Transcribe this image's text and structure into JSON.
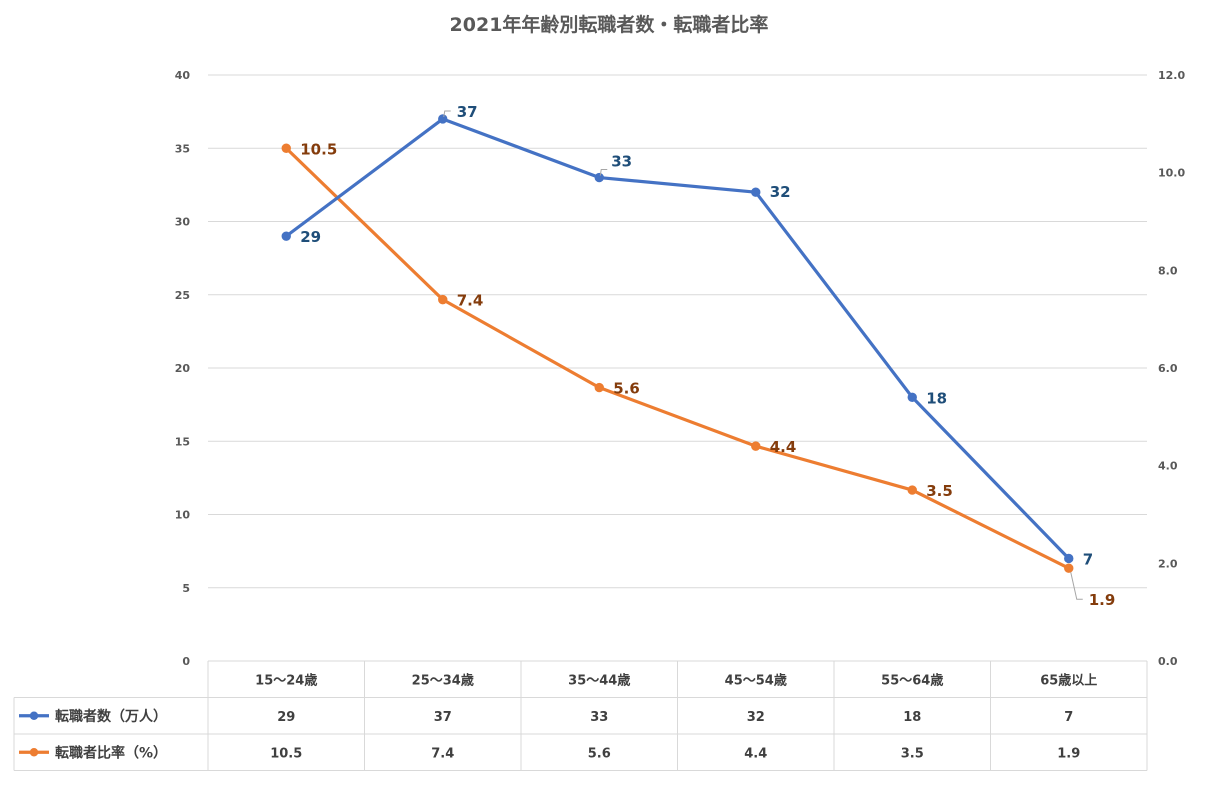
{
  "chart_data": {
    "type": "line",
    "title": "2021年年齢別転職者数・転職者比率",
    "categories": [
      "15～24歳",
      "25～34歳",
      "35～44歳",
      "45～54歳",
      "55～64歳",
      "65歳以上"
    ],
    "series": [
      {
        "name": "転職者数（万人）",
        "axis": "left",
        "color": "#4472C4",
        "values": [
          29,
          37,
          33,
          32,
          18,
          7
        ],
        "value_labels": [
          "29",
          "37",
          "33",
          "32",
          "18",
          "7"
        ],
        "table_values": [
          "29",
          "37",
          "33",
          "32",
          "18",
          "7"
        ]
      },
      {
        "name": "転職者比率（%）",
        "axis": "right",
        "color": "#ED7D31",
        "values": [
          10.5,
          7.4,
          5.6,
          4.4,
          3.5,
          1.9
        ],
        "value_labels": [
          "10.5",
          "7.4",
          "5.6",
          "4.4",
          "3.5",
          "1.9"
        ],
        "table_values": [
          "10.5",
          "7.4",
          "5.6",
          "4.4",
          "3.5",
          "1.9"
        ]
      }
    ],
    "y_left": {
      "min": 0,
      "max": 40,
      "ticks": [
        "0",
        "5",
        "10",
        "15",
        "20",
        "25",
        "30",
        "35",
        "40"
      ]
    },
    "y_right": {
      "min": 0,
      "max": 12,
      "ticks": [
        "0.0",
        "2.0",
        "4.0",
        "6.0",
        "8.0",
        "10.0",
        "12.0"
      ]
    },
    "grid": true,
    "legend": "data-table",
    "label_colors": {
      "blue": "#1F4E79",
      "orange": "#843C0C"
    }
  }
}
